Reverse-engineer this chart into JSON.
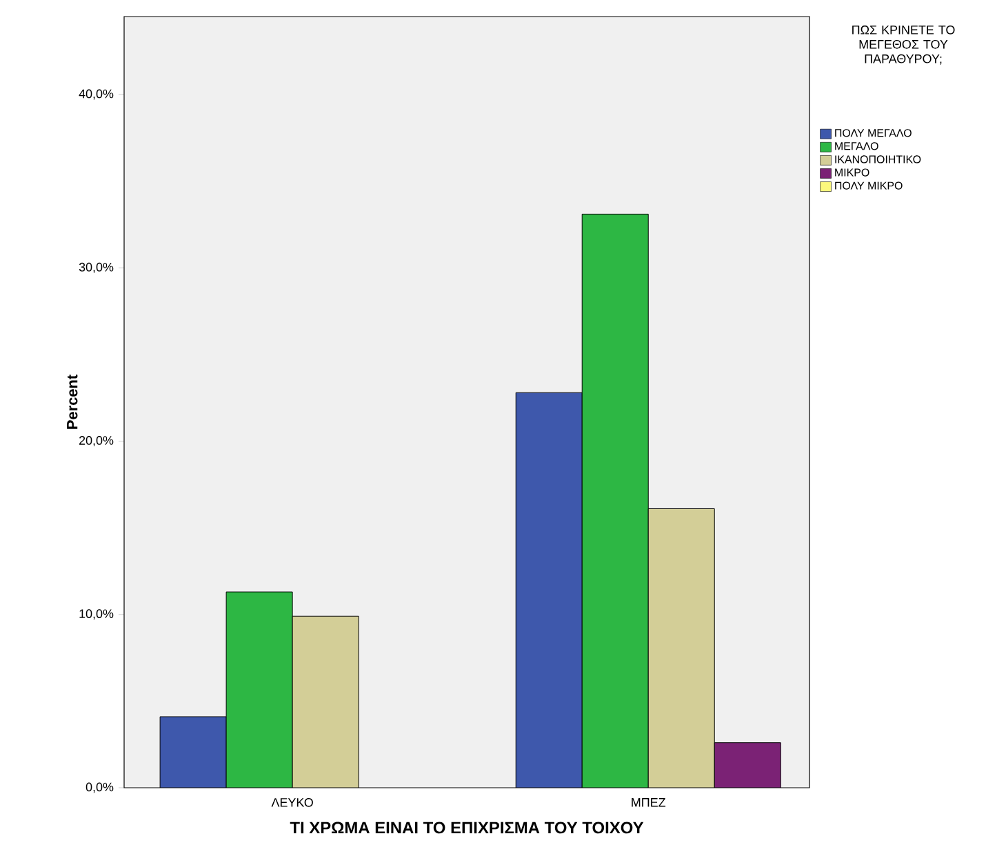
{
  "chart_data": {
    "type": "bar",
    "xlabel": "ΤΙ ΧΡΩΜΑ ΕΙΝΑΙ ΤΟ ΕΠΙΧΡΙΣΜΑ ΤΟΥ ΤΟΙΧΟΥ",
    "ylabel": "Percent",
    "legend_title": "ΠΩΣ ΚΡΙΝΕΤΕ ΤΟ ΜΕΓΕΘΟΣ ΤΟΥ ΠΑΡΑΘΥΡΟΥ;",
    "categories": [
      "ΛΕΥΚΟ",
      "ΜΠΕΖ"
    ],
    "series": [
      {
        "name": "ΠΟΛΥ ΜΕΓΑΛΟ",
        "color": "#3e58ac",
        "values": [
          4.1,
          22.8
        ]
      },
      {
        "name": "ΜΕΓΑΛΟ",
        "color": "#2db744",
        "values": [
          11.3,
          33.1
        ]
      },
      {
        "name": "ΙΚΑΝΟΠΟΙΗΤΙΚΟ",
        "color": "#d3ce97",
        "values": [
          9.9,
          16.1
        ]
      },
      {
        "name": "ΜΙΚΡΟ",
        "color": "#7b2275",
        "values": [
          null,
          2.6
        ]
      },
      {
        "name": "ΠΟΛΥ ΜΙΚΡΟ",
        "color": "#fbf87d",
        "values": [
          null,
          null
        ]
      }
    ],
    "ylim": [
      0,
      44.5
    ],
    "yticks": [
      {
        "value": 0,
        "label": "0,0%"
      },
      {
        "value": 10,
        "label": "10,0%"
      },
      {
        "value": 20,
        "label": "20,0%"
      },
      {
        "value": 30,
        "label": "30,0%"
      },
      {
        "value": 40,
        "label": "40,0%"
      }
    ],
    "legend": "right",
    "grid": false
  }
}
